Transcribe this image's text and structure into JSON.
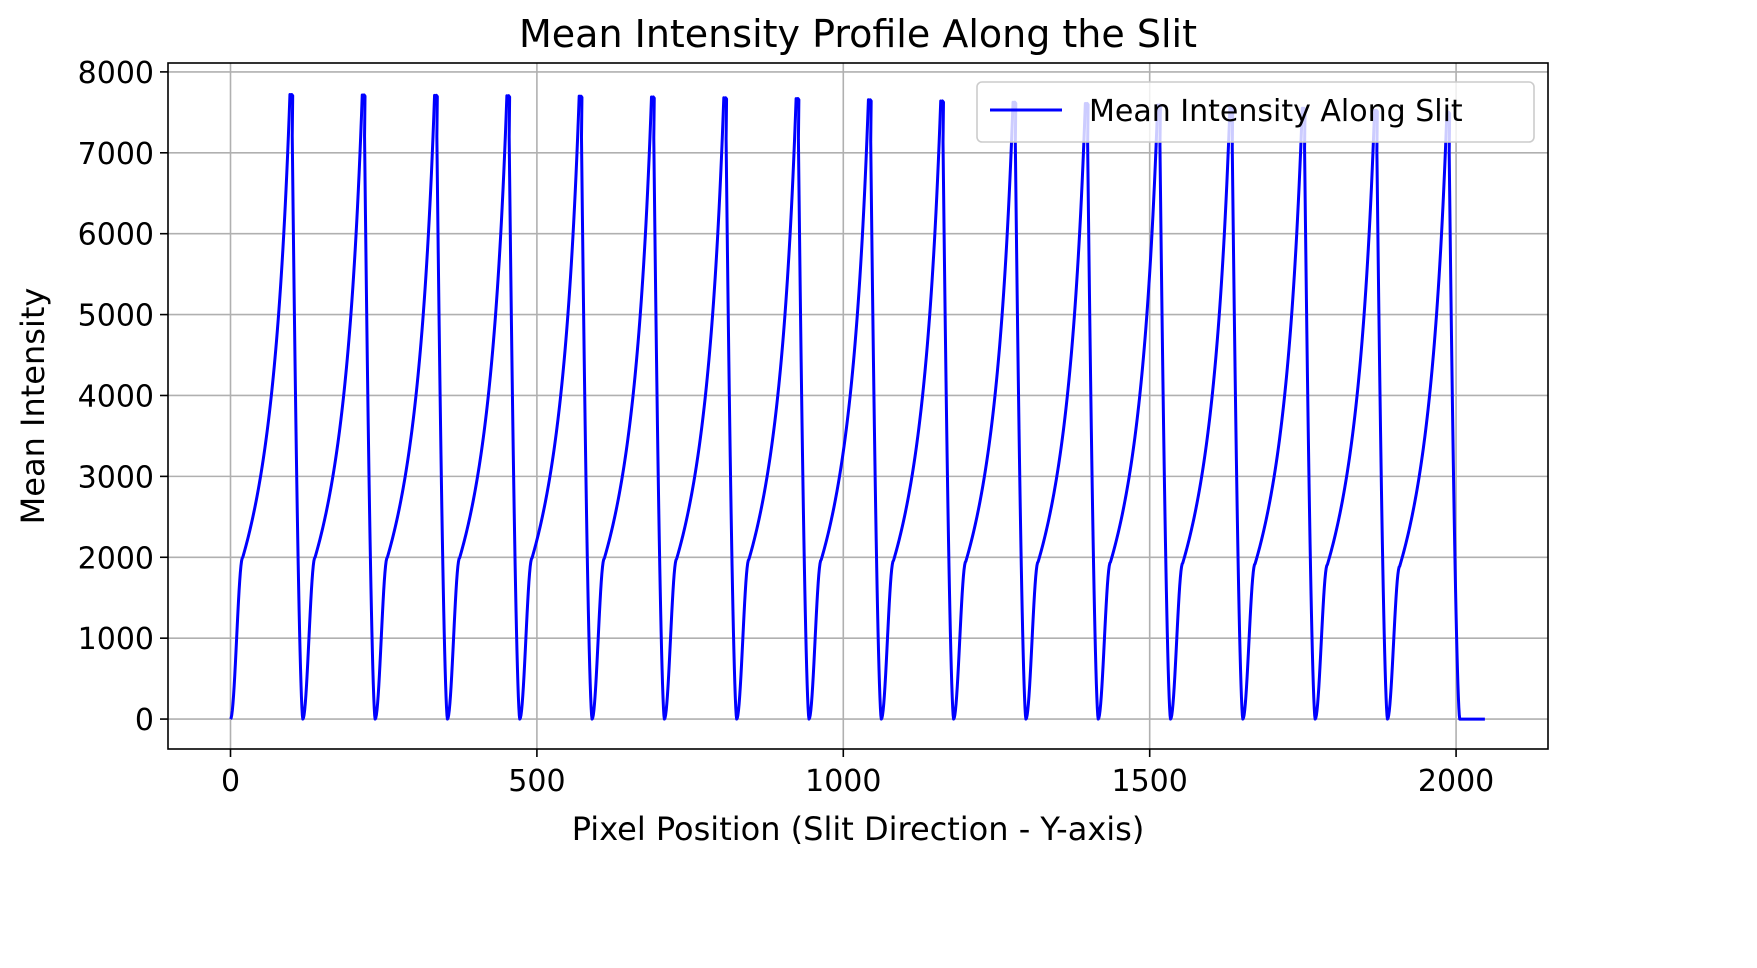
{
  "chart_data": {
    "type": "line",
    "title": "Mean Intensity Profile Along the Slit",
    "xlabel": "Pixel Position (Slit Direction - Y-axis)",
    "ylabel": "Mean Intensity",
    "xlim": [
      -102,
      2150
    ],
    "ylim": [
      -370,
      8110
    ],
    "xticks": [
      0,
      500,
      1000,
      1500,
      2000
    ],
    "yticks": [
      0,
      1000,
      2000,
      3000,
      4000,
      5000,
      6000,
      7000,
      8000
    ],
    "grid": true,
    "legend": {
      "position": "top-right",
      "entries": [
        "Mean Intensity Along Slit"
      ]
    },
    "series": [
      {
        "name": "Mean Intensity Along Slit",
        "color": "#0000ff",
        "peak_positions": [
          100,
          218,
          336,
          454,
          572,
          690,
          808,
          926,
          1044,
          1162,
          1280,
          1398,
          1516,
          1634,
          1752,
          1870,
          1988
        ],
        "peak_values": [
          7720,
          7715,
          7710,
          7705,
          7700,
          7690,
          7680,
          7670,
          7655,
          7640,
          7625,
          7610,
          7590,
          7570,
          7550,
          7525,
          7500
        ],
        "trough_positions": [
          0,
          118,
          236,
          354,
          472,
          590,
          708,
          826,
          944,
          1062,
          1180,
          1298,
          1416,
          1534,
          1652,
          1770,
          1888
        ],
        "shoulder_values": [
          2000,
          2000,
          2000,
          1995,
          1990,
          1985,
          1980,
          1975,
          1970,
          1960,
          1950,
          1945,
          1940,
          1930,
          1920,
          1910,
          1890
        ],
        "tail_x": [
          2006,
          2047
        ],
        "tail_value": 0
      }
    ]
  }
}
